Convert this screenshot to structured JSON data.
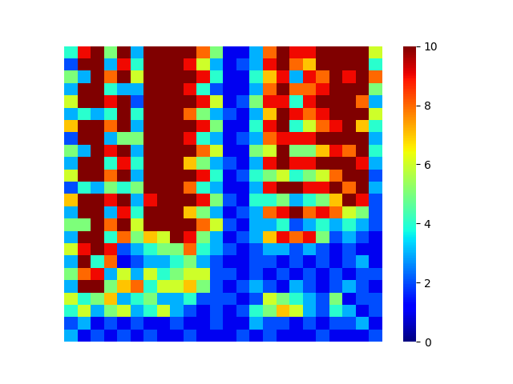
{
  "chart_data": {
    "type": "heatmap",
    "tick_labels": false,
    "cells": [
      [
        4,
        9,
        10,
        5,
        10,
        3,
        10,
        10,
        10,
        10,
        8,
        5,
        1,
        1,
        3,
        8,
        10,
        9,
        9,
        10,
        10,
        10,
        10,
        6
      ],
      [
        2,
        10,
        10,
        3,
        9,
        4,
        10,
        10,
        10,
        9,
        6,
        3,
        1,
        2,
        3,
        9,
        10,
        8,
        7,
        10,
        10,
        10,
        10,
        4
      ],
      [
        5,
        3,
        10,
        8,
        10,
        6,
        10,
        10,
        10,
        10,
        9,
        4,
        1,
        1,
        4,
        7,
        9,
        3,
        9,
        8,
        10,
        9,
        10,
        8
      ],
      [
        3,
        10,
        10,
        4,
        3,
        3,
        10,
        10,
        10,
        9,
        4,
        2,
        1,
        1,
        3,
        8,
        10,
        8,
        8,
        9,
        10,
        10,
        10,
        5
      ],
      [
        6,
        10,
        10,
        9,
        10,
        2,
        10,
        10,
        10,
        10,
        9,
        6,
        1,
        2,
        5,
        9,
        9,
        4,
        9,
        10,
        10,
        10,
        8,
        3
      ],
      [
        3,
        4,
        3,
        4,
        10,
        4,
        10,
        10,
        10,
        8,
        5,
        3,
        2,
        1,
        3,
        7,
        10,
        9,
        8,
        9,
        10,
        10,
        10,
        6
      ],
      [
        7,
        10,
        10,
        8,
        10,
        3,
        10,
        10,
        10,
        10,
        9,
        5,
        1,
        1,
        4,
        9,
        10,
        4,
        6,
        8,
        9,
        10,
        7,
        4
      ],
      [
        2,
        10,
        10,
        3,
        5,
        5,
        10,
        10,
        10,
        9,
        4,
        3,
        1,
        2,
        3,
        8,
        9,
        9,
        9,
        10,
        10,
        10,
        10,
        3
      ],
      [
        5,
        3,
        10,
        9,
        10,
        3,
        10,
        10,
        10,
        10,
        8,
        6,
        1,
        1,
        5,
        6,
        10,
        5,
        5,
        7,
        9,
        8,
        10,
        4
      ],
      [
        3,
        10,
        10,
        4,
        9,
        4,
        10,
        10,
        10,
        7,
        5,
        3,
        2,
        1,
        3,
        9,
        10,
        9,
        9,
        10,
        10,
        10,
        9,
        3
      ],
      [
        6,
        10,
        10,
        8,
        10,
        3,
        10,
        10,
        10,
        10,
        9,
        4,
        1,
        2,
        4,
        5,
        6,
        4,
        5,
        6,
        8,
        10,
        10,
        2
      ],
      [
        2,
        4,
        3,
        5,
        4,
        5,
        10,
        10,
        10,
        8,
        4,
        3,
        1,
        1,
        3,
        9,
        10,
        10,
        9,
        9,
        10,
        8,
        10,
        3
      ],
      [
        7,
        10,
        10,
        9,
        10,
        3,
        9,
        10,
        10,
        10,
        9,
        5,
        2,
        1,
        4,
        4,
        5,
        3,
        4,
        5,
        7,
        10,
        9,
        2
      ],
      [
        3,
        10,
        10,
        3,
        9,
        4,
        10,
        10,
        10,
        7,
        5,
        3,
        1,
        2,
        3,
        8,
        9,
        10,
        8,
        9,
        8,
        6,
        5,
        2
      ],
      [
        5,
        5,
        10,
        8,
        10,
        6,
        10,
        10,
        10,
        10,
        8,
        6,
        2,
        1,
        3,
        3,
        4,
        2,
        3,
        4,
        3,
        4,
        3,
        2
      ],
      [
        3,
        10,
        10,
        4,
        8,
        5,
        7,
        6,
        10,
        9,
        5,
        3,
        1,
        2,
        3,
        7,
        9,
        8,
        9,
        5,
        2,
        3,
        2,
        1
      ],
      [
        6,
        9,
        10,
        9,
        2,
        3,
        4,
        5,
        5,
        8,
        4,
        3,
        2,
        1,
        2,
        3,
        3,
        2,
        3,
        2,
        1,
        2,
        1,
        1
      ],
      [
        3,
        10,
        4,
        8,
        1,
        2,
        3,
        3,
        4,
        5,
        3,
        2,
        1,
        1,
        2,
        2,
        1,
        2,
        1,
        2,
        1,
        2,
        3,
        1
      ],
      [
        5,
        8,
        9,
        3,
        6,
        3,
        6,
        4,
        5,
        6,
        6,
        2,
        2,
        1,
        2,
        1,
        2,
        1,
        2,
        1,
        2,
        1,
        2,
        2
      ],
      [
        3,
        10,
        10,
        5,
        7,
        8,
        4,
        6,
        6,
        7,
        5,
        2,
        1,
        2,
        3,
        2,
        1,
        3,
        2,
        1,
        2,
        3,
        2,
        1
      ],
      [
        6,
        4,
        5,
        7,
        3,
        4,
        5,
        3,
        3,
        4,
        2,
        2,
        2,
        1,
        2,
        6,
        5,
        4,
        3,
        2,
        5,
        1,
        2,
        2
      ],
      [
        4,
        6,
        3,
        5,
        6,
        3,
        4,
        6,
        3,
        2,
        1,
        2,
        1,
        2,
        4,
        5,
        7,
        6,
        3,
        2,
        4,
        3,
        1,
        2
      ],
      [
        2,
        3,
        1,
        2,
        1,
        2,
        1,
        1,
        2,
        1,
        1,
        2,
        1,
        1,
        3,
        2,
        2,
        1,
        2,
        1,
        2,
        2,
        3,
        1
      ],
      [
        3,
        1,
        2,
        1,
        2,
        1,
        2,
        1,
        1,
        2,
        1,
        1,
        1,
        2,
        1,
        2,
        1,
        1,
        1,
        2,
        1,
        1,
        1,
        2
      ]
    ],
    "colorbar_range": [
      0,
      10
    ],
    "colorbar_ticks": [
      0,
      2,
      4,
      6,
      8,
      10
    ]
  }
}
